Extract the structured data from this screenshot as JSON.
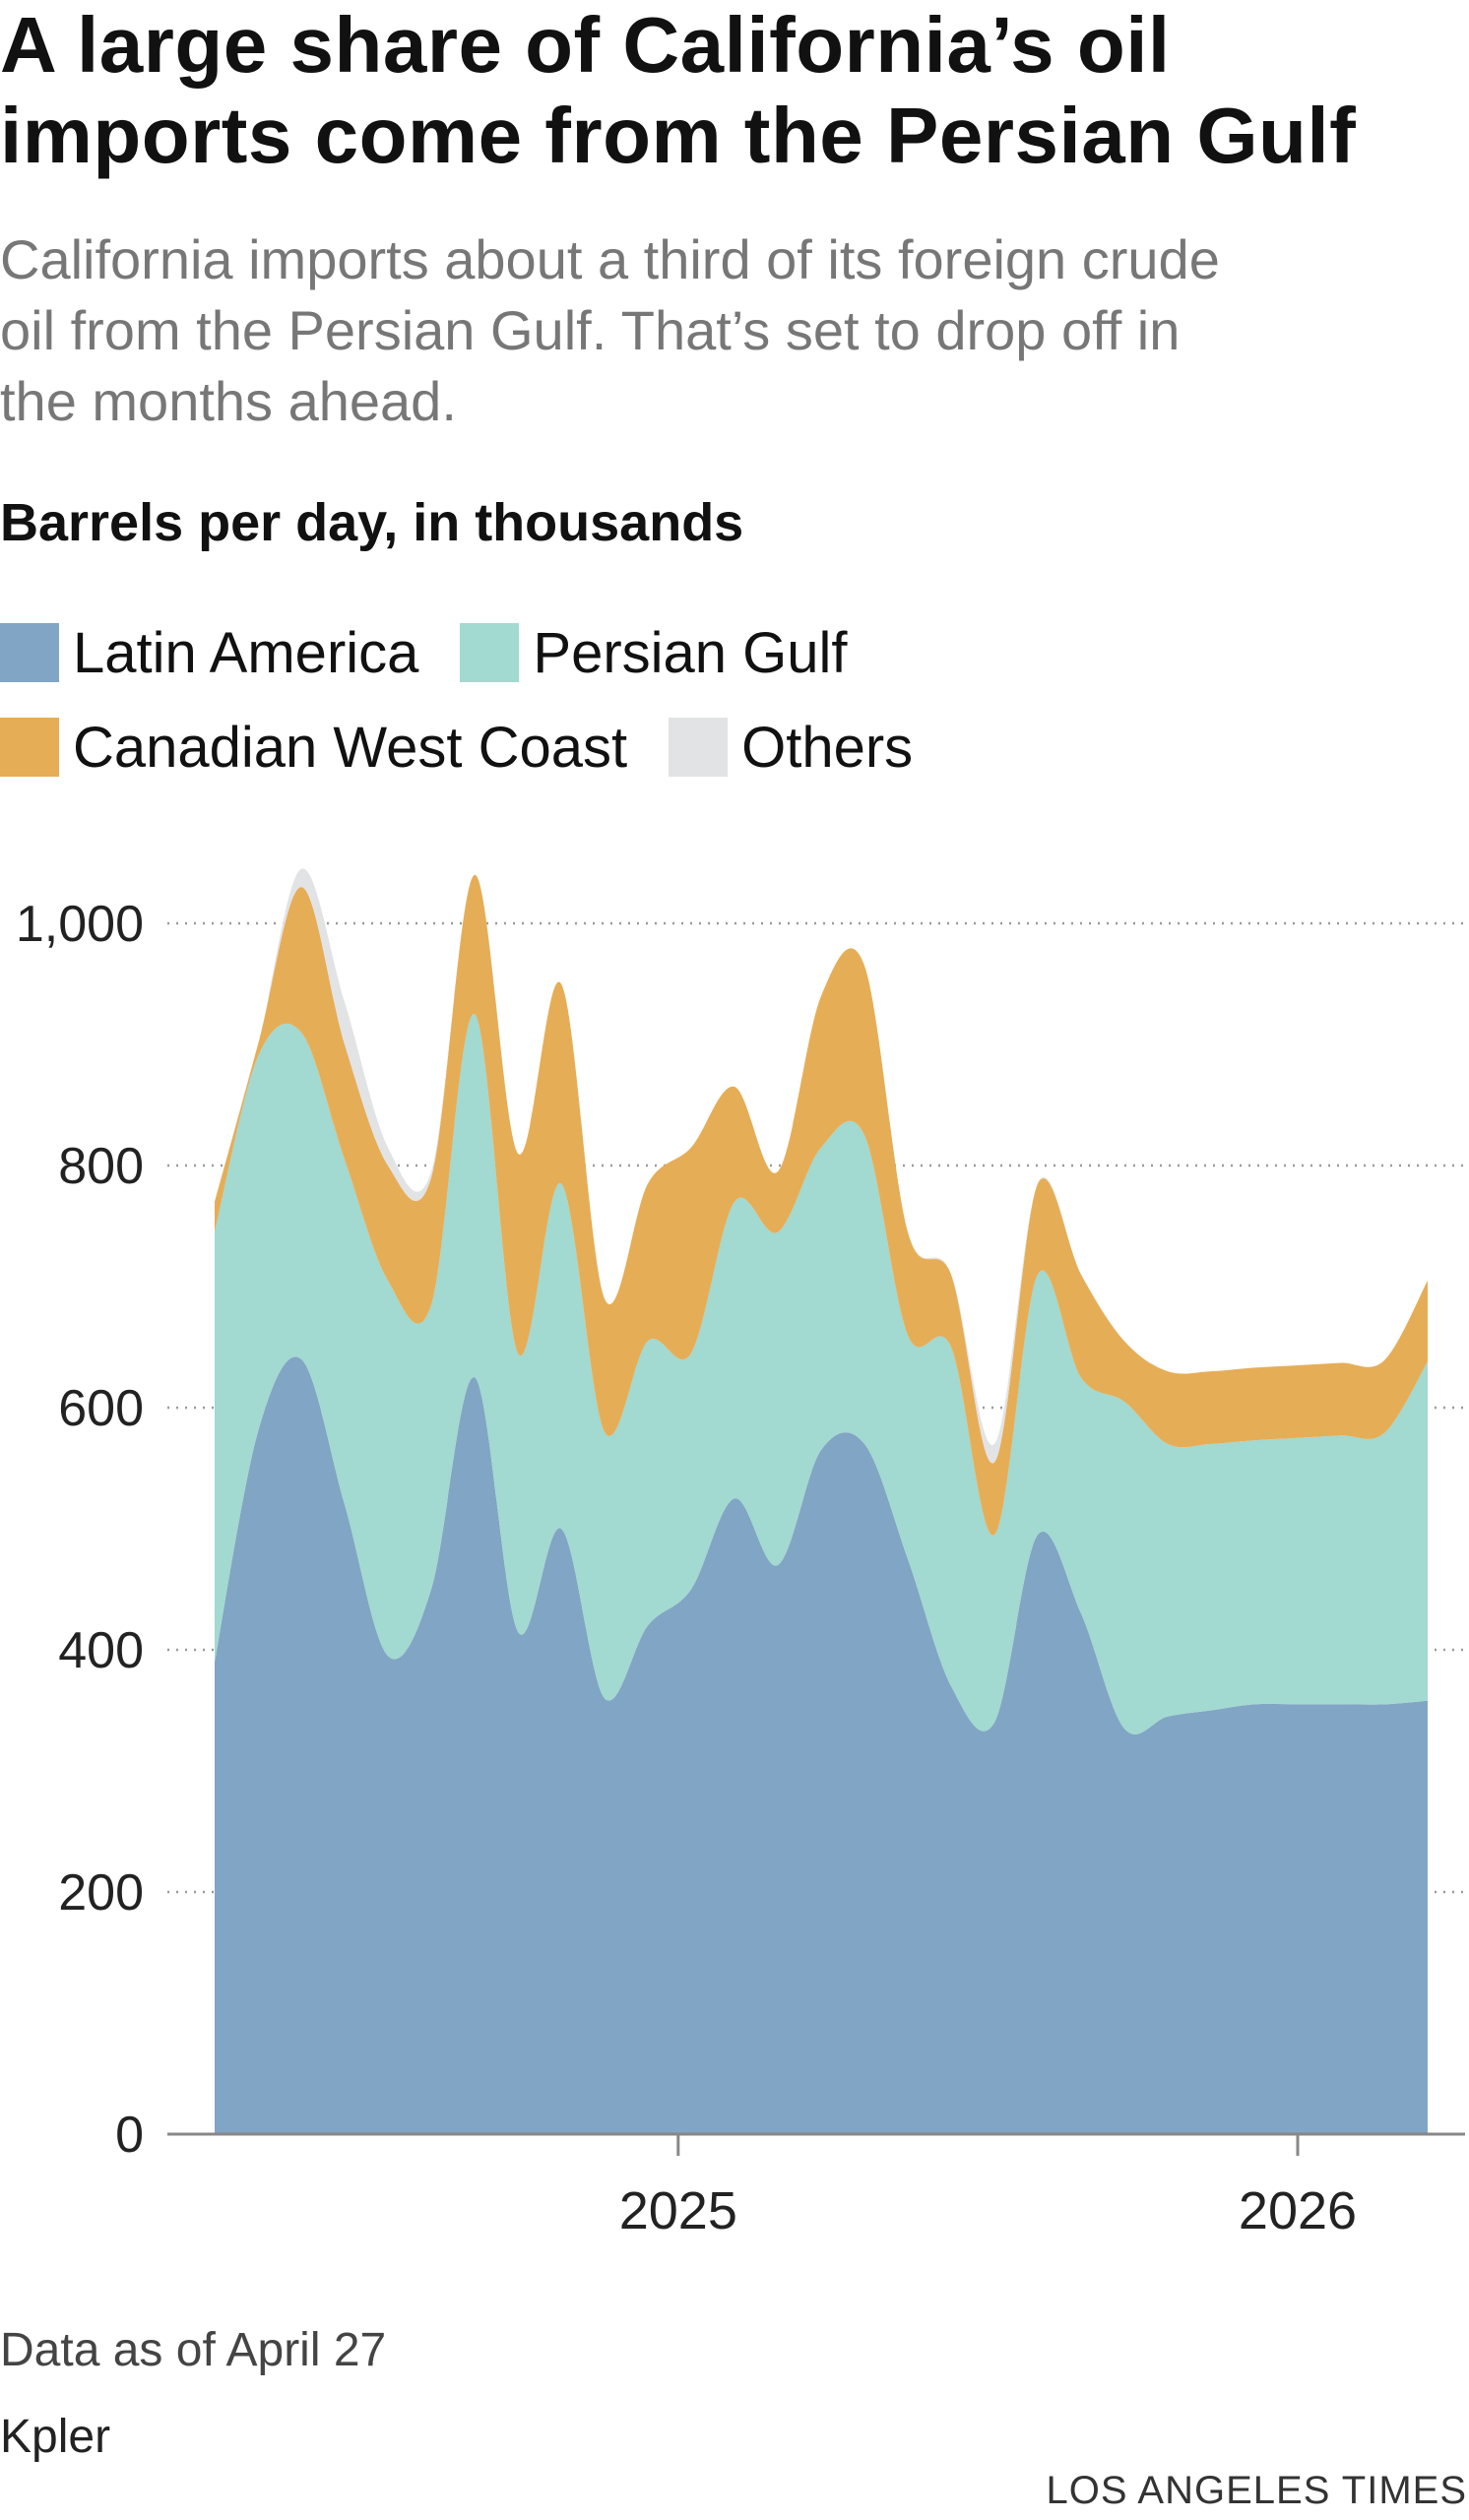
{
  "header": {
    "title_lines": [
      "A large share of California’s oil",
      "imports come from the Persian Gulf"
    ],
    "subtitle_lines": [
      "California imports about a third of its foreign crude",
      "oil from the Persian Gulf. That’s set to drop off in",
      "the months ahead."
    ]
  },
  "chart_data": {
    "type": "area",
    "stacked": true,
    "title": "A large share of California’s oil imports come from the Persian Gulf",
    "ylabel": "Barrels per day, in thousands",
    "ylim": [
      0,
      1050
    ],
    "yticks": [
      0,
      200,
      400,
      600,
      800,
      1000
    ],
    "ytick_labels": [
      "0",
      "200",
      "400",
      "600",
      "800",
      "1,000"
    ],
    "grid": "horizontal dotted",
    "xlim": [
      0,
      29.5
    ],
    "x_ticks": [
      {
        "x": 10.7,
        "label": "2025"
      },
      {
        "x": 25,
        "label": "2026"
      }
    ],
    "x": [
      0,
      1,
      2,
      3,
      4,
      5,
      6,
      7,
      8,
      9,
      10,
      11,
      12,
      13,
      14,
      15,
      16,
      17,
      18,
      19,
      20,
      21,
      22,
      23,
      24,
      25,
      26,
      27,
      28
    ],
    "series": [
      {
        "name": "Latin America",
        "color": "#81a5c4",
        "values": [
          390,
          580,
          640,
          520,
          395,
          450,
          625,
          415,
          500,
          360,
          420,
          450,
          525,
          470,
          565,
          570,
          475,
          370,
          340,
          495,
          430,
          335,
          345,
          350,
          355,
          355,
          355,
          355,
          358
        ]
      },
      {
        "name": "Persian Gulf",
        "color": "#a2d9d0",
        "values": [
          355,
          310,
          270,
          285,
          310,
          235,
          300,
          230,
          285,
          220,
          235,
          195,
          245,
          275,
          250,
          255,
          185,
          280,
          155,
          215,
          195,
          270,
          225,
          220,
          218,
          220,
          222,
          224,
          280
        ]
      },
      {
        "name": "Canadian West Coast",
        "color": "#e6ad57",
        "values": [
          25,
          10,
          120,
          95,
          95,
          105,
          115,
          165,
          165,
          110,
          130,
          170,
          95,
          50,
          125,
          140,
          85,
          60,
          60,
          75,
          85,
          50,
          60,
          60,
          60,
          60,
          60,
          60,
          67
        ]
      },
      {
        "name": "Others",
        "color": "#e2e3e4",
        "values": [
          0,
          0,
          15,
          35,
          15,
          5,
          0,
          0,
          0,
          0,
          0,
          0,
          0,
          0,
          0,
          0,
          0,
          0,
          15,
          0,
          0,
          0,
          0,
          0,
          0,
          0,
          0,
          0,
          0
        ]
      }
    ]
  },
  "footer": {
    "note": "Data as of April 27",
    "source": "Kpler",
    "credit": "LOS ANGELES TIMES"
  }
}
